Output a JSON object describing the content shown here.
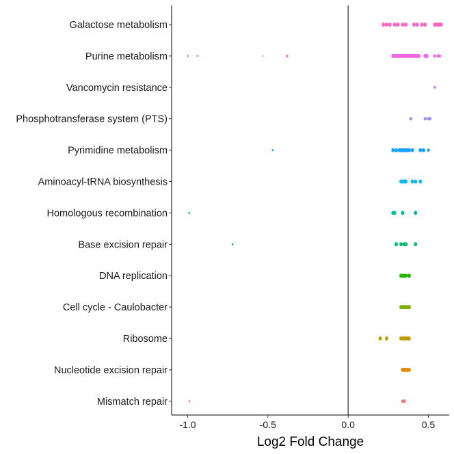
{
  "chart_data": {
    "type": "scatter",
    "title": "",
    "xlabel": "Log2 Fold Change",
    "ylabel": "",
    "xlim": [
      -1.1,
      0.63
    ],
    "x_ticks": [
      -1.0,
      -0.5,
      0.0,
      0.5
    ],
    "x_tick_labels": [
      "-1.0",
      "-0.5",
      "0.0",
      "0.5"
    ],
    "reference_line_x": 0,
    "grid": false,
    "legend": "none",
    "categories": [
      "Galactose metabolism",
      "Purine metabolism",
      "Vancomycin resistance",
      "Phosphotransferase system (PTS)",
      "Pyrimidine metabolism",
      "Aminoacyl-tRNA biosynthesis",
      "Homologous recombination",
      "Base excision repair",
      "DNA replication",
      "Cell cycle - Caulobacter",
      "Ribosome",
      "Nucleotide excision repair",
      "Mismatch repair"
    ],
    "series": [
      {
        "category": "Galactose metabolism",
        "color": "#FF66C1",
        "points": [
          {
            "x": 0.22,
            "size": 6
          },
          {
            "x": 0.24,
            "size": 6
          },
          {
            "x": 0.26,
            "size": 6
          },
          {
            "x": 0.29,
            "size": 6
          },
          {
            "x": 0.31,
            "size": 6
          },
          {
            "x": 0.34,
            "size": 6
          },
          {
            "x": 0.36,
            "size": 6
          },
          {
            "x": 0.41,
            "size": 6
          },
          {
            "x": 0.43,
            "size": 6
          },
          {
            "x": 0.46,
            "size": 6
          },
          {
            "x": 0.48,
            "size": 6
          },
          {
            "x": 0.54,
            "size": 6
          },
          {
            "x": 0.55,
            "size": 6
          },
          {
            "x": 0.56,
            "size": 6
          },
          {
            "x": 0.57,
            "size": 6
          },
          {
            "x": 0.58,
            "size": 6
          }
        ]
      },
      {
        "category": "Purine metabolism",
        "color": "#F066E3",
        "points": [
          {
            "x": -1.0,
            "size": 3
          },
          {
            "x": -0.94,
            "size": 3
          },
          {
            "x": -0.53,
            "size": 2
          },
          {
            "x": -0.38,
            "size": 4
          },
          {
            "x": 0.28,
            "size": 6
          },
          {
            "x": 0.29,
            "size": 6
          },
          {
            "x": 0.3,
            "size": 6
          },
          {
            "x": 0.31,
            "size": 6
          },
          {
            "x": 0.32,
            "size": 6
          },
          {
            "x": 0.33,
            "size": 6
          },
          {
            "x": 0.34,
            "size": 6
          },
          {
            "x": 0.35,
            "size": 6
          },
          {
            "x": 0.36,
            "size": 6
          },
          {
            "x": 0.37,
            "size": 6
          },
          {
            "x": 0.38,
            "size": 6
          },
          {
            "x": 0.39,
            "size": 6
          },
          {
            "x": 0.4,
            "size": 6
          },
          {
            "x": 0.41,
            "size": 6
          },
          {
            "x": 0.42,
            "size": 6
          },
          {
            "x": 0.43,
            "size": 6
          },
          {
            "x": 0.44,
            "size": 6
          },
          {
            "x": 0.48,
            "size": 6
          },
          {
            "x": 0.49,
            "size": 6
          },
          {
            "x": 0.54,
            "size": 5
          },
          {
            "x": 0.56,
            "size": 5
          },
          {
            "x": 0.57,
            "size": 5
          }
        ]
      },
      {
        "category": "Vancomycin resistance",
        "color": "#D772F6",
        "points": [
          {
            "x": 0.54,
            "size": 4
          }
        ]
      },
      {
        "category": "Phosphotransferase system (PTS)",
        "color": "#9A8CF7",
        "points": [
          {
            "x": 0.39,
            "size": 5
          },
          {
            "x": 0.48,
            "size": 5
          },
          {
            "x": 0.5,
            "size": 5
          },
          {
            "x": 0.51,
            "size": 5
          }
        ]
      },
      {
        "category": "Pyrimidine metabolism",
        "color": "#19A4FF",
        "points": [
          {
            "x": -0.47,
            "size": 3
          },
          {
            "x": 0.28,
            "size": 6
          },
          {
            "x": 0.3,
            "size": 6
          },
          {
            "x": 0.32,
            "size": 6
          },
          {
            "x": 0.33,
            "size": 6
          },
          {
            "x": 0.34,
            "size": 6
          },
          {
            "x": 0.35,
            "size": 6
          },
          {
            "x": 0.36,
            "size": 6
          },
          {
            "x": 0.37,
            "size": 6
          },
          {
            "x": 0.38,
            "size": 6
          },
          {
            "x": 0.4,
            "size": 6
          },
          {
            "x": 0.45,
            "size": 6
          },
          {
            "x": 0.47,
            "size": 6
          },
          {
            "x": 0.5,
            "size": 5
          }
        ]
      },
      {
        "category": "Aminoacyl-tRNA biosynthesis",
        "color": "#0DB8E6",
        "points": [
          {
            "x": 0.33,
            "size": 6
          },
          {
            "x": 0.34,
            "size": 6
          },
          {
            "x": 0.35,
            "size": 6
          },
          {
            "x": 0.36,
            "size": 6
          },
          {
            "x": 0.4,
            "size": 6
          },
          {
            "x": 0.42,
            "size": 6
          },
          {
            "x": 0.45,
            "size": 6
          }
        ]
      },
      {
        "category": "Homologous recombination",
        "color": "#00BAA3",
        "points": [
          {
            "x": -0.99,
            "size": 3
          },
          {
            "x": 0.28,
            "size": 6
          },
          {
            "x": 0.29,
            "size": 6
          },
          {
            "x": 0.34,
            "size": 6
          },
          {
            "x": 0.42,
            "size": 6
          }
        ]
      },
      {
        "category": "Base excision repair",
        "color": "#00BE6C",
        "points": [
          {
            "x": -0.72,
            "size": 3
          },
          {
            "x": 0.3,
            "size": 6
          },
          {
            "x": 0.33,
            "size": 6
          },
          {
            "x": 0.35,
            "size": 6
          },
          {
            "x": 0.36,
            "size": 6
          },
          {
            "x": 0.42,
            "size": 6
          }
        ]
      },
      {
        "category": "DNA replication",
        "color": "#24B700",
        "points": [
          {
            "x": 0.33,
            "size": 6
          },
          {
            "x": 0.34,
            "size": 6
          },
          {
            "x": 0.35,
            "size": 6
          },
          {
            "x": 0.36,
            "size": 6
          },
          {
            "x": 0.38,
            "size": 6
          }
        ]
      },
      {
        "category": "Cell cycle - Caulobacter",
        "color": "#7CAE00",
        "points": [
          {
            "x": 0.33,
            "size": 6
          },
          {
            "x": 0.34,
            "size": 6
          },
          {
            "x": 0.35,
            "size": 6
          },
          {
            "x": 0.36,
            "size": 6
          },
          {
            "x": 0.37,
            "size": 6
          },
          {
            "x": 0.38,
            "size": 6
          }
        ]
      },
      {
        "category": "Ribosome",
        "color": "#BB9D00",
        "points": [
          {
            "x": 0.2,
            "size": 6
          },
          {
            "x": 0.24,
            "size": 6
          },
          {
            "x": 0.33,
            "size": 6
          },
          {
            "x": 0.34,
            "size": 6
          },
          {
            "x": 0.35,
            "size": 6
          },
          {
            "x": 0.36,
            "size": 6
          },
          {
            "x": 0.37,
            "size": 6
          },
          {
            "x": 0.38,
            "size": 6
          }
        ]
      },
      {
        "category": "Nucleotide excision repair",
        "color": "#E38900",
        "points": [
          {
            "x": 0.34,
            "size": 6
          },
          {
            "x": 0.35,
            "size": 6
          },
          {
            "x": 0.36,
            "size": 6
          },
          {
            "x": 0.37,
            "size": 6
          },
          {
            "x": 0.38,
            "size": 6
          }
        ]
      },
      {
        "category": "Mismatch repair",
        "color": "#F8766D",
        "points": [
          {
            "x": -0.99,
            "size": 3
          },
          {
            "x": 0.34,
            "size": 5
          },
          {
            "x": 0.35,
            "size": 5
          }
        ]
      }
    ]
  }
}
